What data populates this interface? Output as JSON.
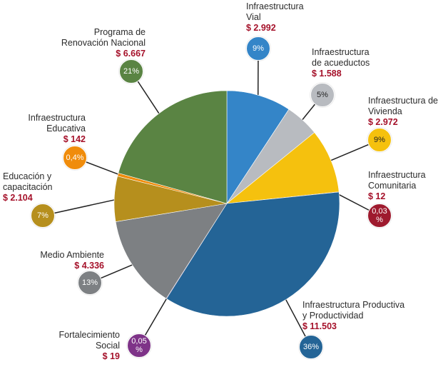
{
  "chart_data": {
    "type": "pie",
    "title": "",
    "slices": [
      {
        "label": "Infraestructura\nVial",
        "amount": "$ 2.992",
        "value": 9.3,
        "pct_label": "9%",
        "color": "#3485c8"
      },
      {
        "label": "Infraestructura\nde acueductos",
        "amount": "$ 1.588",
        "value": 4.9,
        "pct_label": "5%",
        "color": "#b8bbc0"
      },
      {
        "label": "Infraestructura de\nVivienda",
        "amount": "$ 2.972",
        "value": 9.2,
        "pct_label": "9%",
        "color": "#f5c10e"
      },
      {
        "label": "Infraestructura\nComunitaria",
        "amount": "$ 12",
        "value": 0.03,
        "pct_label": "0,03\n%",
        "color": "#9e1a2e"
      },
      {
        "label": "Infraestructura Productiva\ny Productividad",
        "amount": "$ 11.503",
        "value": 35.7,
        "pct_label": "36%",
        "color": "#246496"
      },
      {
        "label": "Fortalecimiento\nSocial",
        "amount": "$ 19",
        "value": 0.05,
        "pct_label": "0,05\n%",
        "color": "#7e3388"
      },
      {
        "label": "Medio Ambiente",
        "amount": "$ 4.336",
        "value": 13.4,
        "pct_label": "13%",
        "color": "#7d8083"
      },
      {
        "label": "Educación y\ncapacitación",
        "amount": "$ 2.104",
        "value": 6.5,
        "pct_label": "7%",
        "color": "#b68f1d"
      },
      {
        "label": "Infraestructura\nEducativa",
        "amount": "$ 142",
        "value": 0.45,
        "pct_label": "0,4%",
        "color": "#f08c0b"
      },
      {
        "label": "Programa de\nRenovación Nacional",
        "amount": "$ 6.667",
        "value": 20.7,
        "pct_label": "21%",
        "color": "#5a8443"
      }
    ]
  }
}
